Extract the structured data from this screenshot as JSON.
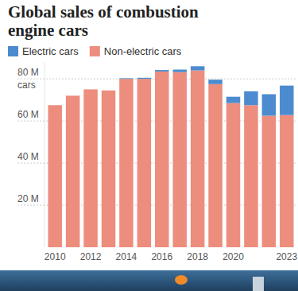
{
  "chart_data": {
    "type": "bar",
    "title": "Global sales of combustion engine cars",
    "stacked": true,
    "legend": "top-left",
    "grid": true,
    "y_label": "cars",
    "categories": [
      "2010",
      null,
      "2012",
      null,
      "2014",
      null,
      "2016",
      null,
      "2018",
      null,
      "2020",
      null,
      null,
      "2023"
    ],
    "series": [
      {
        "name": "Non-electric cars",
        "color": "#ec8d7e",
        "values": [
          67.5,
          72,
          75,
          74.5,
          80,
          80,
          83.5,
          83.2,
          84,
          77.5,
          68.5,
          67.5,
          62.5,
          62.8
        ]
      },
      {
        "name": "Electric cars",
        "color": "#4c8bcf",
        "values": [
          0,
          0,
          0,
          0,
          0.3,
          0.5,
          0.7,
          1.2,
          2,
          2.1,
          3,
          6.6,
          10.2,
          14
        ]
      }
    ],
    "ylim": [
      0,
      88
    ],
    "yticks": [
      {
        "value": 20,
        "label": "20 M"
      },
      {
        "value": 40,
        "label": "40 M"
      },
      {
        "value": 60,
        "label": "60 M"
      },
      {
        "value": 80,
        "label": "80 M"
      }
    ]
  }
}
